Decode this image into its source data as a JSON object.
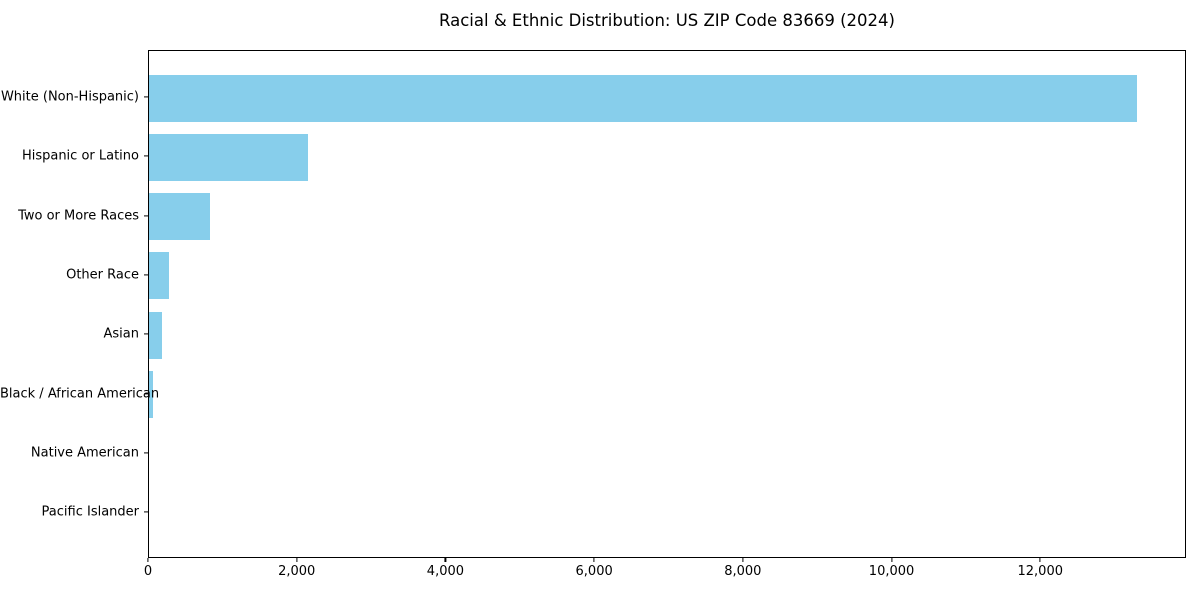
{
  "figure": {
    "background_color": "#ffffff",
    "frame_color": "#000000",
    "text_color": "#000000"
  },
  "chart_data": {
    "type": "bar",
    "orientation": "horizontal",
    "title": "Racial & Ethnic Distribution: US ZIP Code 83669 (2024)",
    "xlabel": "",
    "ylabel": "",
    "categories": [
      "White (Non-Hispanic)",
      "Hispanic or Latino",
      "Two or More Races",
      "Other Race",
      "Asian",
      "Black / African American",
      "Native American",
      "Pacific Islander"
    ],
    "values": [
      13292,
      2132,
      821,
      273,
      175,
      58,
      0,
      0
    ],
    "bar_color": "#87CEEB",
    "xlim": [
      0,
      13960
    ],
    "xticks": [
      {
        "value": 0,
        "label": "0"
      },
      {
        "value": 2000,
        "label": "2,000"
      },
      {
        "value": 4000,
        "label": "4,000"
      },
      {
        "value": 6000,
        "label": "6,000"
      },
      {
        "value": 8000,
        "label": "8,000"
      },
      {
        "value": 10000,
        "label": "10,000"
      },
      {
        "value": 12000,
        "label": "12,000"
      }
    ],
    "grid": false,
    "legend": null
  }
}
